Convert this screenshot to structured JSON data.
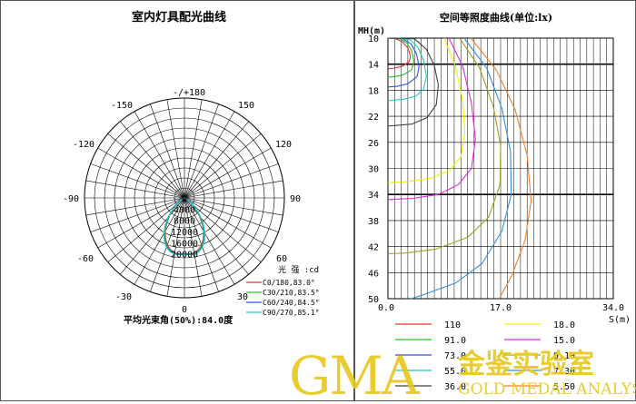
{
  "polar_panel": {
    "title": "室内灯具配光曲线",
    "angle_labels": {
      "top": "-/+180",
      "upper_left": "-150",
      "upper_right": "150",
      "left_hi": "-120",
      "right_hi": "120",
      "left_mid": "-90",
      "right_mid": "90",
      "left_lo": "-60",
      "right_lo": "60",
      "lower_left": "-30",
      "lower_right": "30",
      "bottom": "0",
      "center": "0"
    },
    "radial_labels": [
      "4000",
      "8000",
      "12000",
      "16000",
      "20000"
    ],
    "intensity_unit": "光 强 :cd",
    "beam_angle": "平均光束角(50%):84.0度"
  },
  "chart_data": [
    {
      "type": "polar",
      "title": "室内灯具配光曲线",
      "r_unit": "cd",
      "r_ticks": [
        4000,
        8000,
        12000,
        16000,
        20000
      ],
      "r_max": 20000,
      "angle_ticks": [
        0,
        30,
        60,
        90,
        120,
        150,
        180,
        -150,
        -120,
        -90,
        -60,
        -30
      ],
      "series": [
        {
          "name": "C0/180,83.0°",
          "color": "#e03030",
          "points": [
            [
              0,
              20000
            ],
            [
              5,
              20200
            ],
            [
              10,
              20000
            ],
            [
              15,
              19200
            ],
            [
              20,
              18000
            ],
            [
              25,
              16000
            ],
            [
              30,
              13800
            ],
            [
              35,
              11000
            ],
            [
              40,
              8300
            ],
            [
              45,
              5500
            ],
            [
              50,
              3000
            ],
            [
              55,
              1200
            ],
            [
              60,
              300
            ],
            [
              65,
              0
            ]
          ]
        },
        {
          "name": "C30/210,83.5°",
          "color": "#28c028",
          "points": [
            [
              0,
              20000
            ],
            [
              5,
              20300
            ],
            [
              10,
              20200
            ],
            [
              15,
              19500
            ],
            [
              20,
              18300
            ],
            [
              25,
              16400
            ],
            [
              30,
              14100
            ],
            [
              35,
              11300
            ],
            [
              40,
              8600
            ],
            [
              45,
              5800
            ],
            [
              50,
              3200
            ],
            [
              55,
              1300
            ],
            [
              60,
              350
            ],
            [
              65,
              0
            ]
          ]
        },
        {
          "name": "C60/240,84.5°",
          "color": "#3050e0",
          "points": [
            [
              0,
              20000
            ],
            [
              5,
              20300
            ],
            [
              10,
              20300
            ],
            [
              15,
              19700
            ],
            [
              20,
              18600
            ],
            [
              25,
              16700
            ],
            [
              30,
              14400
            ],
            [
              35,
              11700
            ],
            [
              40,
              8900
            ],
            [
              45,
              6000
            ],
            [
              50,
              3400
            ],
            [
              55,
              1400
            ],
            [
              60,
              380
            ],
            [
              65,
              0
            ]
          ]
        },
        {
          "name": "C90/270,85.1°",
          "color": "#20c8c8",
          "points": [
            [
              0,
              20000
            ],
            [
              5,
              20400
            ],
            [
              10,
              20400
            ],
            [
              15,
              19900
            ],
            [
              20,
              18800
            ],
            [
              25,
              16900
            ],
            [
              30,
              14600
            ],
            [
              35,
              11900
            ],
            [
              40,
              9100
            ],
            [
              45,
              6200
            ],
            [
              50,
              3500
            ],
            [
              55,
              1500
            ],
            [
              60,
              400
            ],
            [
              65,
              0
            ]
          ]
        }
      ]
    },
    {
      "type": "line",
      "title": "空间等照度曲线(单位:lx)",
      "xlabel": "S(m)",
      "ylabel": "MH(m)",
      "x_ticks": [
        "0.0",
        "17.0",
        "34.0"
      ],
      "y_ticks": [
        "10",
        "14",
        "18",
        "22",
        "26",
        "30",
        "34",
        "38",
        "42",
        "46",
        "50"
      ],
      "xlim": [
        0,
        34
      ],
      "ylim": [
        10,
        50
      ],
      "y_inverted": true,
      "grid": true,
      "series": [
        {
          "name": "110",
          "color": "#e03030",
          "points": [
            [
              0,
              10
            ],
            [
              1.2,
              10.1
            ],
            [
              2.2,
              10.6
            ],
            [
              3.0,
              11.5
            ],
            [
              3.4,
              12.8
            ],
            [
              3.2,
              13.6
            ],
            [
              2.2,
              14.3
            ],
            [
              1.0,
              14.6
            ],
            [
              0,
              14.7
            ]
          ]
        },
        {
          "name": "91.0",
          "color": "#28c028",
          "points": [
            [
              0,
              10
            ],
            [
              1.8,
              10.1
            ],
            [
              2.9,
              10.8
            ],
            [
              3.6,
              12.0
            ],
            [
              3.9,
              13.6
            ],
            [
              3.6,
              14.8
            ],
            [
              2.4,
              15.6
            ],
            [
              1.1,
              15.9
            ],
            [
              0,
              16.0
            ]
          ]
        },
        {
          "name": "73.0",
          "color": "#3050e0",
          "points": [
            [
              0,
              10
            ],
            [
              2.2,
              10.1
            ],
            [
              3.5,
              10.9
            ],
            [
              4.3,
              12.4
            ],
            [
              4.7,
              14.3
            ],
            [
              4.4,
              15.9
            ],
            [
              3.0,
              17.0
            ],
            [
              1.4,
              17.4
            ],
            [
              0,
              17.5
            ]
          ]
        },
        {
          "name": "55.0",
          "color": "#20c8c8",
          "points": [
            [
              1.5,
              10
            ],
            [
              3.4,
              10.3
            ],
            [
              4.6,
              11.5
            ],
            [
              5.4,
              13.5
            ],
            [
              5.8,
              15.8
            ],
            [
              5.4,
              17.8
            ],
            [
              4.2,
              18.9
            ],
            [
              2.3,
              19.4
            ],
            [
              0,
              19.6
            ]
          ]
        },
        {
          "name": "36.0",
          "color": "#404040",
          "points": [
            [
              0,
              10
            ],
            [
              4.0,
              10.1
            ],
            [
              5.8,
              11.7
            ],
            [
              7.0,
              14.2
            ],
            [
              7.6,
              17.2
            ],
            [
              7.3,
              20.2
            ],
            [
              5.9,
              22.2
            ],
            [
              3.6,
              23.2
            ],
            [
              1.2,
              23.4
            ],
            [
              0,
              23.5
            ]
          ]
        },
        {
          "name": "18.0",
          "color": "#f0f000",
          "points": [
            [
              8.5,
              10
            ],
            [
              10.2,
              14.4
            ],
            [
              11.3,
              19.8
            ],
            [
              11.6,
              24.5
            ],
            [
              11.0,
              28.2
            ],
            [
              9.3,
              30.3
            ],
            [
              6.5,
              31.5
            ],
            [
              3.3,
              32.0
            ],
            [
              0,
              32.2
            ]
          ]
        },
        {
          "name": "15.0",
          "color": "#e028e0",
          "points": [
            [
              9.2,
              10
            ],
            [
              11.3,
              14.4
            ],
            [
              12.6,
              20.0
            ],
            [
              13.2,
              25.5
            ],
            [
              12.6,
              30.0
            ],
            [
              10.6,
              32.5
            ],
            [
              7.6,
              34.0
            ],
            [
              3.8,
              34.6
            ],
            [
              0,
              34.8
            ]
          ]
        },
        {
          "name": "9.10",
          "color": "#a0a020",
          "points": [
            [
              10.8,
              10
            ],
            [
              13.8,
              14.5
            ],
            [
              15.9,
              20.5
            ],
            [
              17.0,
              26.5
            ],
            [
              16.9,
              32.5
            ],
            [
              15.2,
              37.5
            ],
            [
              12.0,
              40.6
            ],
            [
              7.2,
              42.4
            ],
            [
              2.5,
              43.0
            ],
            [
              0,
              43.1
            ]
          ]
        },
        {
          "name": "7.30",
          "color": "#3090e0",
          "points": [
            [
              11.5,
              10
            ],
            [
              14.9,
              14.6
            ],
            [
              17.2,
              20.8
            ],
            [
              18.5,
              27.5
            ],
            [
              18.6,
              34.0
            ],
            [
              17.2,
              39.6
            ],
            [
              14.2,
              44.6
            ],
            [
              10.2,
              47.6
            ],
            [
              5.6,
              49.3
            ],
            [
              3.5,
              50
            ]
          ]
        },
        {
          "name": "5.50",
          "color": "#f08030",
          "points": [
            [
              12.5,
              10
            ],
            [
              16.3,
              14.8
            ],
            [
              19.2,
              21.0
            ],
            [
              21.0,
              28.0
            ],
            [
              21.6,
              35.0
            ],
            [
              20.7,
              41.0
            ],
            [
              18.8,
              46.2
            ],
            [
              16.8,
              50
            ]
          ]
        }
      ]
    }
  ],
  "isolux_panel": {
    "title": "空间等照度曲线(单位:lx)",
    "y_axis_label": "MH(m)",
    "x_axis_label": "S(m)"
  },
  "watermark": {
    "main": "GMA",
    "cn": "金鉴实验室",
    "en": "GOLD MEDAL ANALYSIS",
    "color": "#e8c820"
  }
}
